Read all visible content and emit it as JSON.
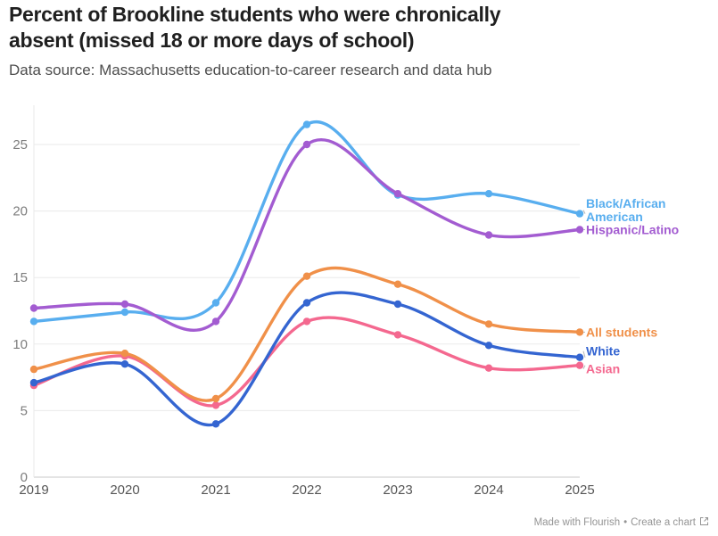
{
  "header": {
    "title": "Percent of Brookline students who were chronically absent (missed 18 or more days of school)",
    "title_lines": [
      "Percent of Brookline students who were chronically",
      "absent (missed 18 or more days of school)"
    ],
    "subtitle": "Data source: Massachusetts education-to-career research and data hub"
  },
  "footer": {
    "made_with": "Made with Flourish",
    "separator": "•",
    "create": "Create a chart",
    "external_link_icon": "external-link"
  },
  "chart_data": {
    "type": "line",
    "title": "Percent of Brookline students who were chronically absent (missed 18 or more days of school)",
    "x": [
      2019,
      2020,
      2021,
      2022,
      2023,
      2024,
      2025
    ],
    "series": [
      {
        "name": "Asian",
        "color": "#F4688F",
        "values": [
          6.9,
          9.1,
          5.4,
          11.7,
          10.7,
          8.2,
          8.4
        ],
        "label_lines": [
          "Asian"
        ]
      },
      {
        "name": "White",
        "color": "#3465D1",
        "values": [
          7.1,
          8.5,
          4.0,
          13.1,
          13.0,
          9.9,
          9.0
        ],
        "label_lines": [
          "White"
        ]
      },
      {
        "name": "All students",
        "color": "#F09049",
        "values": [
          8.1,
          9.3,
          5.9,
          15.1,
          14.5,
          11.5,
          10.9
        ],
        "label_lines": [
          "All students"
        ]
      },
      {
        "name": "Black/African American",
        "color": "#58AEEF",
        "values": [
          11.7,
          12.4,
          13.1,
          26.5,
          21.2,
          21.3,
          19.8
        ],
        "label_lines": [
          "Black/African",
          "American"
        ]
      },
      {
        "name": "Hispanic/Latino",
        "color": "#A35CD1",
        "values": [
          12.7,
          13.0,
          11.7,
          25.0,
          21.3,
          18.2,
          18.6
        ],
        "label_lines": [
          "Hispanic/Latino"
        ]
      }
    ],
    "yticks": [
      0,
      5,
      10,
      15,
      20,
      25
    ],
    "ylim": [
      0,
      28
    ],
    "xlabel": "",
    "ylabel": "",
    "grid": "horizontal",
    "legend_position": "end-labels-right"
  }
}
